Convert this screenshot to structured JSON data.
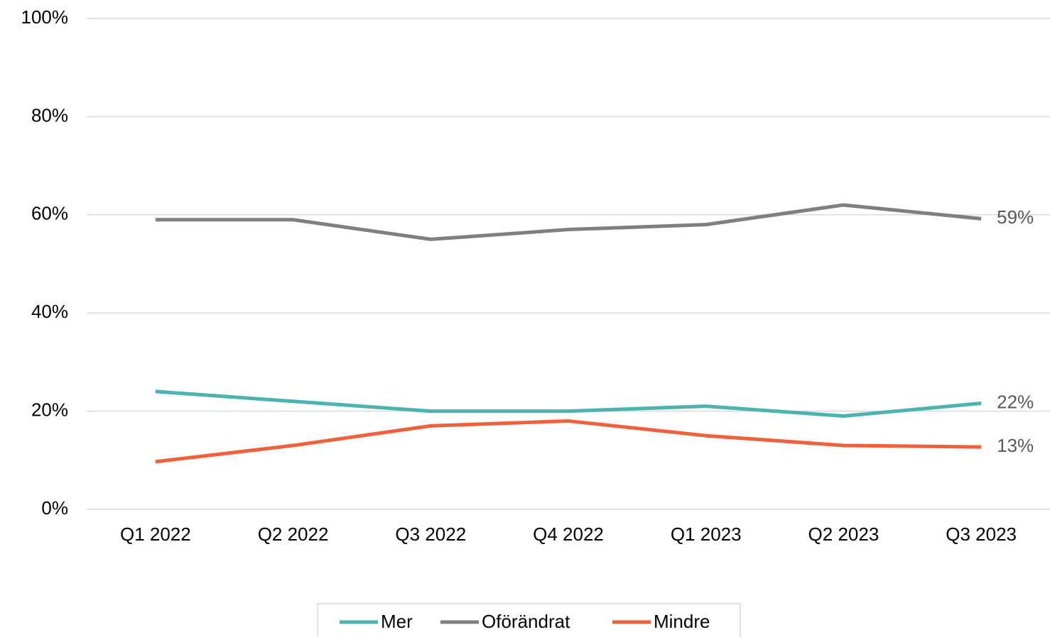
{
  "chart_data": {
    "type": "line",
    "categories": [
      "Q1 2022",
      "Q2 2022",
      "Q3 2022",
      "Q4 2022",
      "Q1 2023",
      "Q2 2023",
      "Q3 2023"
    ],
    "series": [
      {
        "name": "Mer",
        "color": "#4bb3b0",
        "values": [
          24,
          22,
          20,
          20,
          21,
          19,
          21.6
        ],
        "value_labels": [
          null,
          null,
          null,
          null,
          null,
          null,
          "22%"
        ]
      },
      {
        "name": "Oförändrat",
        "color": "#7f7f7f",
        "values": [
          59,
          59,
          55,
          57,
          58,
          62,
          59.2
        ],
        "value_labels": [
          null,
          null,
          null,
          null,
          null,
          null,
          "59%"
        ]
      },
      {
        "name": "Mindre",
        "color": "#f0603a",
        "values": [
          9.7,
          13,
          17,
          18,
          15,
          13,
          12.7
        ],
        "value_labels": [
          null,
          null,
          null,
          null,
          null,
          null,
          "13%"
        ]
      }
    ],
    "ylim": [
      0,
      100
    ],
    "yticks": [
      {
        "value": 0,
        "label": "0%"
      },
      {
        "value": 20,
        "label": "20%"
      },
      {
        "value": 40,
        "label": "40%"
      },
      {
        "value": 60,
        "label": "60%"
      },
      {
        "value": 80,
        "label": "80%"
      },
      {
        "value": 100,
        "label": "100%"
      }
    ],
    "grid": true,
    "legend": "bottom"
  }
}
